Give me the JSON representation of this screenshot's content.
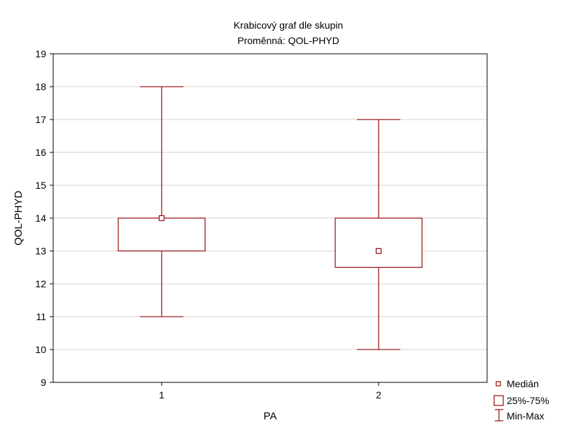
{
  "chart_data": {
    "type": "boxplot",
    "title": "Krabicový graf dle skupin",
    "subtitle": "Proměnná: QOL-PHYD",
    "xlabel": "PA",
    "ylabel": "QOL-PHYD",
    "ylim": [
      9,
      19
    ],
    "yticks": [
      9,
      10,
      11,
      12,
      13,
      14,
      15,
      16,
      17,
      18,
      19
    ],
    "grid": true,
    "categories": [
      "1",
      "2"
    ],
    "boxes": [
      {
        "category": "1",
        "min": 11,
        "q1": 13,
        "median": 14,
        "q3": 14,
        "max": 18
      },
      {
        "category": "2",
        "min": 10,
        "q1": 12.5,
        "median": 13,
        "q3": 14,
        "max": 17
      }
    ],
    "legend": {
      "position": "bottom-right",
      "entries": [
        {
          "symbol": "median",
          "label": "Medián"
        },
        {
          "symbol": "box",
          "label": "25%-75%"
        },
        {
          "symbol": "whisker",
          "label": "Min-Max"
        }
      ]
    },
    "color": "#9b1b1b"
  }
}
